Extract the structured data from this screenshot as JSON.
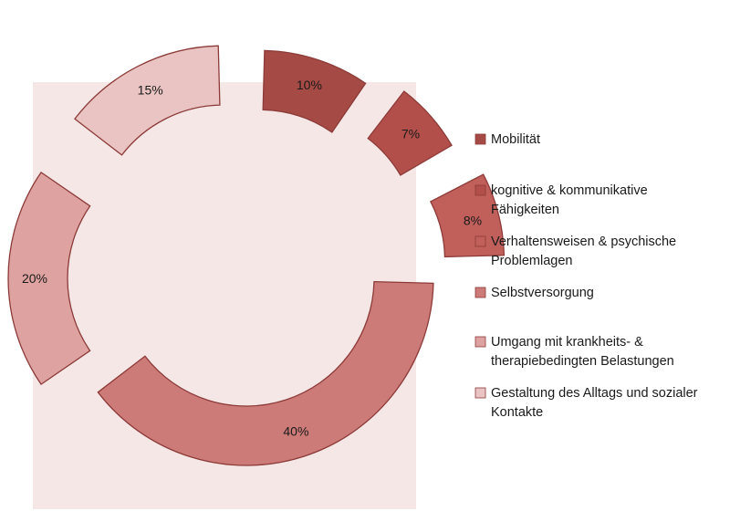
{
  "chart_data": {
    "type": "pie",
    "style": "exploded donut",
    "values": [
      10,
      7,
      8,
      40,
      20,
      15
    ],
    "value_suffix": "%",
    "data_labels": [
      "10%",
      "7%",
      "8%",
      "40%",
      "20%",
      "15%"
    ],
    "legend": {
      "position": "right",
      "entries": [
        [
          "Mobilität"
        ],
        [
          "kognitive & kommunikative",
          "Fähigkeiten"
        ],
        [
          "Verhaltensweisen & psychische",
          "Problemlagen"
        ],
        [
          "Selbstversorgung"
        ],
        [
          "Umgang mit krankheits- &",
          "therapiebedingten Belastungen"
        ],
        [
          "Gestaltung des Alltags und sozialer",
          "Kontakte"
        ]
      ]
    },
    "colors": [
      "#a54a45",
      "#b24f4b",
      "#c15f5b",
      "#cd7b78",
      "#dea2a1",
      "#e9c4c3"
    ],
    "edge_color": "#8c3b38",
    "plot_area_color": "#f6e7e7",
    "grid": false
  }
}
